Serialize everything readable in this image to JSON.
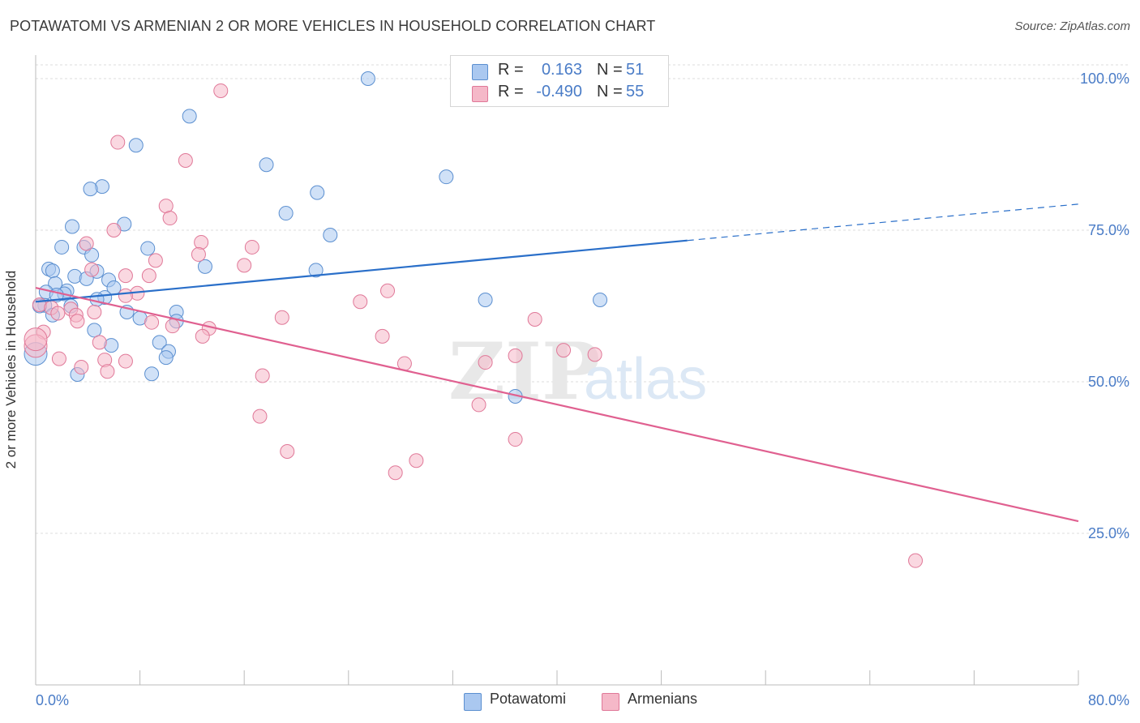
{
  "title": "POTAWATOMI VS ARMENIAN 2 OR MORE VEHICLES IN HOUSEHOLD CORRELATION CHART",
  "source": "Source: ZipAtlas.com",
  "watermark": {
    "zip": "ZIP",
    "atlas": "atlas"
  },
  "legend_top": {
    "rows": [
      {
        "r_label": "R =",
        "r_value": "0.163",
        "n_label": "N =",
        "n_value": "51",
        "color": "#aac8f0",
        "edge": "#5b8fd0"
      },
      {
        "r_label": "R =",
        "r_value": "-0.490",
        "n_label": "N =",
        "n_value": "55",
        "color": "#f5b8c8",
        "edge": "#e07898"
      }
    ]
  },
  "legend_bottom": {
    "items": [
      {
        "label": "Potawatomi",
        "color": "#aac8f0",
        "edge": "#5b8fd0"
      },
      {
        "label": "Armenians",
        "color": "#f5b8c8",
        "edge": "#e07898"
      }
    ]
  },
  "chart_data": {
    "type": "scatter",
    "title": "POTAWATOMI VS ARMENIAN 2 OR MORE VEHICLES IN HOUSEHOLD CORRELATION CHART",
    "xlabel": "",
    "ylabel": "2 or more Vehicles in Household",
    "xlim": [
      0,
      80
    ],
    "ylim": [
      0,
      100
    ],
    "x_tick_labels": [
      "0.0%",
      "80.0%"
    ],
    "y_tick_labels": [
      "100.0%",
      "75.0%",
      "50.0%",
      "25.0%"
    ],
    "y_tick_values": [
      100,
      75,
      50,
      25
    ],
    "grid": true,
    "accent_text_color": "#4a7cc7",
    "series": [
      {
        "name": "Potawatomi",
        "color": "#aac8f0",
        "edge": "#5b8fd0",
        "line_color": "#2a6fc9",
        "trend": {
          "x0": 0,
          "y0": 63.2,
          "x1": 50,
          "y1": 73.3,
          "dash_to_x": 80,
          "dash_to_y": 79.3
        },
        "points": [
          [
            25.5,
            100.0
          ],
          [
            11.8,
            93.8
          ],
          [
            7.7,
            89.0
          ],
          [
            17.7,
            85.8
          ],
          [
            31.5,
            83.8
          ],
          [
            5.1,
            82.2
          ],
          [
            4.2,
            81.8
          ],
          [
            21.6,
            81.2
          ],
          [
            19.2,
            77.8
          ],
          [
            6.8,
            76.0
          ],
          [
            2.8,
            75.6
          ],
          [
            22.6,
            74.2
          ],
          [
            2.0,
            72.2
          ],
          [
            3.7,
            72.2
          ],
          [
            8.6,
            72.0
          ],
          [
            4.3,
            70.9
          ],
          [
            13.0,
            69.0
          ],
          [
            1.0,
            68.6
          ],
          [
            21.5,
            68.4
          ],
          [
            1.3,
            68.3
          ],
          [
            4.7,
            68.2
          ],
          [
            3.0,
            67.4
          ],
          [
            3.9,
            67.0
          ],
          [
            5.6,
            66.8
          ],
          [
            1.5,
            66.2
          ],
          [
            6.0,
            65.5
          ],
          [
            2.4,
            65.0
          ],
          [
            0.8,
            64.8
          ],
          [
            2.2,
            64.5
          ],
          [
            1.6,
            64.3
          ],
          [
            5.3,
            63.9
          ],
          [
            4.7,
            63.6
          ],
          [
            0.7,
            62.6
          ],
          [
            0.3,
            62.5
          ],
          [
            2.7,
            62.5
          ],
          [
            34.5,
            63.5
          ],
          [
            43.3,
            63.5
          ],
          [
            7.0,
            61.5
          ],
          [
            10.8,
            61.5
          ],
          [
            8.0,
            60.5
          ],
          [
            10.8,
            60.0
          ],
          [
            4.5,
            58.5
          ],
          [
            9.5,
            56.5
          ],
          [
            5.8,
            56.0
          ],
          [
            10.2,
            55.0
          ],
          [
            0.0,
            54.6
          ],
          [
            3.2,
            51.2
          ],
          [
            8.9,
            51.3
          ],
          [
            36.8,
            47.6
          ],
          [
            1.3,
            61.0
          ],
          [
            10.0,
            54.0
          ]
        ]
      },
      {
        "name": "Armenians",
        "color": "#f5b8c8",
        "edge": "#e07898",
        "line_color": "#e06090",
        "trend": {
          "x0": 0,
          "y0": 65.5,
          "x1": 80,
          "y1": 27.0
        },
        "points": [
          [
            14.2,
            98.0
          ],
          [
            6.3,
            89.5
          ],
          [
            11.5,
            86.5
          ],
          [
            10.0,
            79.0
          ],
          [
            10.3,
            77.0
          ],
          [
            6.0,
            75.0
          ],
          [
            12.7,
            73.0
          ],
          [
            16.6,
            72.2
          ],
          [
            3.9,
            72.8
          ],
          [
            12.5,
            71.0
          ],
          [
            9.2,
            70.0
          ],
          [
            16.0,
            69.2
          ],
          [
            4.3,
            68.5
          ],
          [
            6.9,
            67.5
          ],
          [
            8.7,
            67.5
          ],
          [
            27.0,
            65.0
          ],
          [
            7.8,
            64.6
          ],
          [
            6.9,
            64.2
          ],
          [
            24.9,
            63.2
          ],
          [
            0.3,
            62.7
          ],
          [
            1.2,
            62.2
          ],
          [
            2.7,
            62.0
          ],
          [
            4.5,
            61.5
          ],
          [
            1.7,
            61.3
          ],
          [
            3.1,
            61.0
          ],
          [
            18.9,
            60.6
          ],
          [
            38.3,
            60.3
          ],
          [
            3.2,
            60.0
          ],
          [
            8.9,
            59.8
          ],
          [
            10.5,
            59.2
          ],
          [
            13.3,
            58.8
          ],
          [
            0.6,
            58.2
          ],
          [
            12.8,
            57.5
          ],
          [
            26.6,
            57.5
          ],
          [
            4.9,
            56.5
          ],
          [
            0.0,
            55.9
          ],
          [
            42.9,
            54.5
          ],
          [
            40.5,
            55.2
          ],
          [
            36.8,
            54.3
          ],
          [
            1.8,
            53.8
          ],
          [
            5.3,
            53.6
          ],
          [
            6.9,
            53.4
          ],
          [
            28.3,
            53.0
          ],
          [
            34.5,
            53.2
          ],
          [
            3.5,
            52.4
          ],
          [
            5.5,
            51.7
          ],
          [
            17.4,
            51.0
          ],
          [
            34.0,
            46.2
          ],
          [
            17.2,
            44.3
          ],
          [
            36.8,
            40.5
          ],
          [
            19.3,
            38.5
          ],
          [
            29.2,
            37.0
          ],
          [
            27.6,
            35.0
          ],
          [
            67.5,
            20.5
          ],
          [
            0.0,
            57.0
          ]
        ]
      }
    ]
  }
}
